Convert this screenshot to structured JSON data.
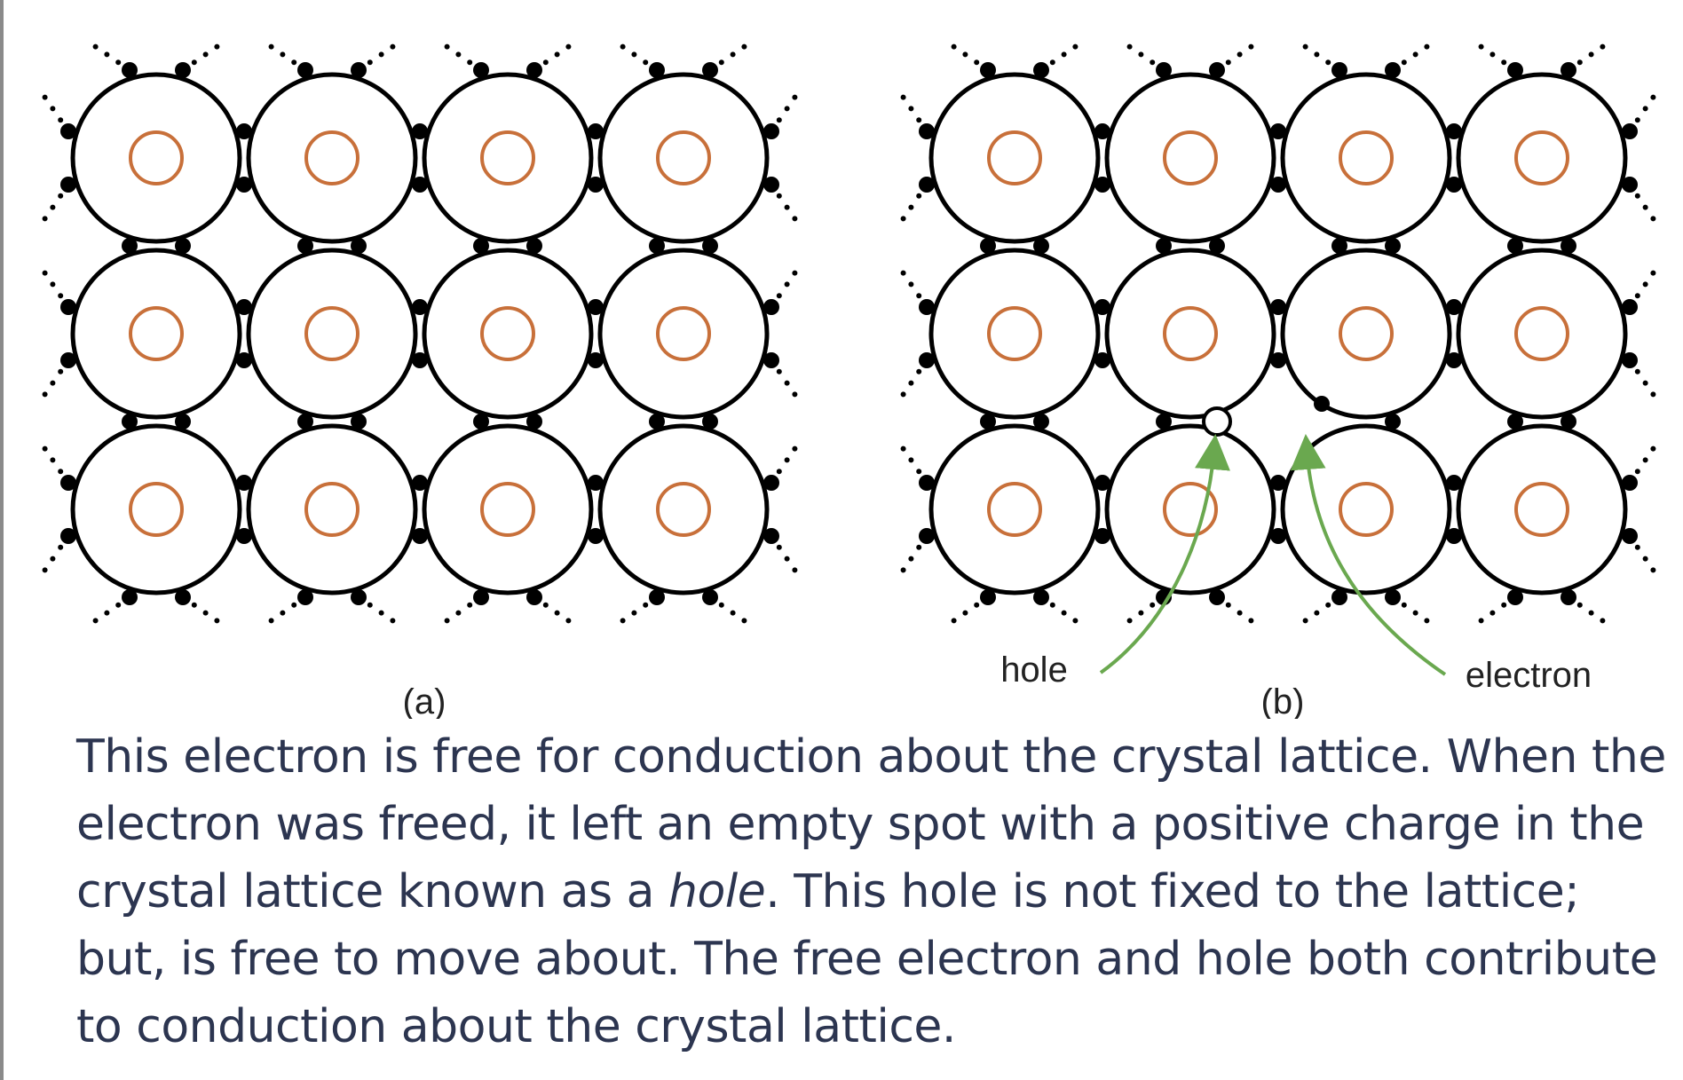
{
  "figure": {
    "panel_a_label": "(a)",
    "panel_b_label": "(b)",
    "hole_label": "hole",
    "electron_label": "electron",
    "lattice": {
      "rows": 3,
      "columns": 4,
      "atom_core_color": "#c8703a",
      "bond_color": "#000000",
      "arrow_color": "#6aa84f",
      "panel_b_missing_electron": "row 2, column 2 bottom bond (shown as open circle = hole)",
      "panel_b_free_electron": "displaced between row 2 columns 2-3"
    }
  },
  "caption": {
    "part1": "This electron is free for conduction about the crystal lattice. When the electron was freed, it left an empty spot with a positive charge in the crystal lattice known as a ",
    "emphasis": "hole",
    "part2": ". This hole is not fixed to the lattice; but, is free to move about. The free electron and hole both contribute to conduction about the crystal lattice."
  }
}
